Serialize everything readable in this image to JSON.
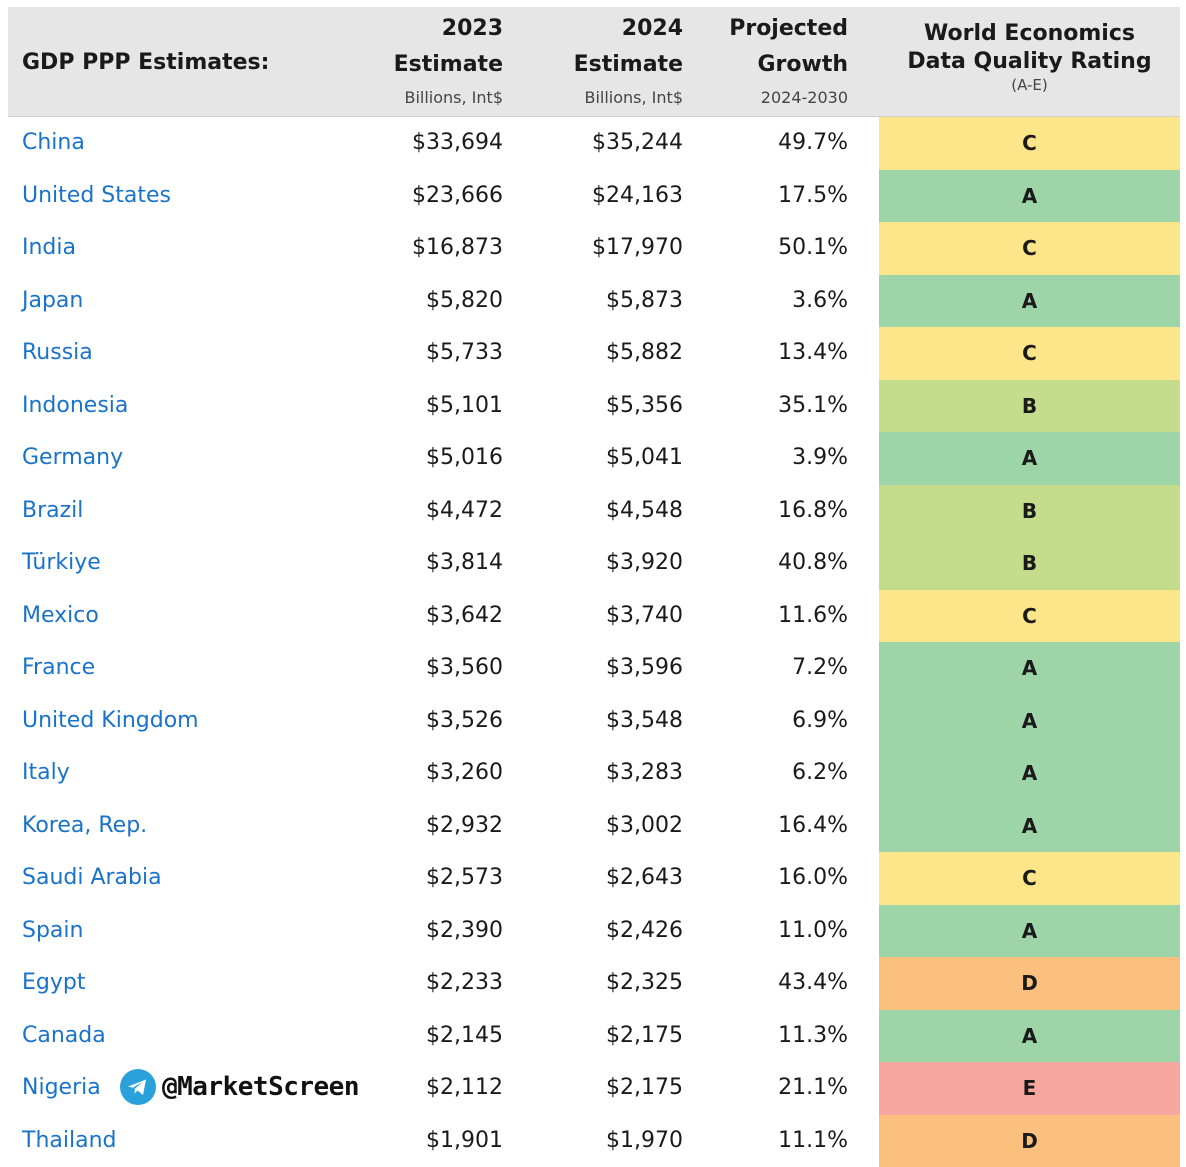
{
  "header": {
    "title": "GDP PPP Estimates:",
    "col_2023": [
      "2023",
      "Estimate",
      "Billions, Int$"
    ],
    "col_2024": [
      "2024",
      "Estimate",
      "Billions, Int$"
    ],
    "col_growth": [
      "Projected",
      "Growth",
      "2024-2030"
    ],
    "col_rating": [
      "World Economics",
      "Data Quality Rating",
      "(A-E)"
    ]
  },
  "rating_colors": {
    "A": "#9dd5a9",
    "B": "#c4dc8c",
    "C": "#fde58a",
    "D": "#fcc07e",
    "E": "#f8a7a0"
  },
  "rows": [
    {
      "country": "China",
      "v2023": "$33,694",
      "v2024": "$35,244",
      "growth": "49.7%",
      "rating": "C"
    },
    {
      "country": "United States",
      "v2023": "$23,666",
      "v2024": "$24,163",
      "growth": "17.5%",
      "rating": "A"
    },
    {
      "country": "India",
      "v2023": "$16,873",
      "v2024": "$17,970",
      "growth": "50.1%",
      "rating": "C"
    },
    {
      "country": "Japan",
      "v2023": "$5,820",
      "v2024": "$5,873",
      "growth": "3.6%",
      "rating": "A"
    },
    {
      "country": "Russia",
      "v2023": "$5,733",
      "v2024": "$5,882",
      "growth": "13.4%",
      "rating": "C"
    },
    {
      "country": "Indonesia",
      "v2023": "$5,101",
      "v2024": "$5,356",
      "growth": "35.1%",
      "rating": "B"
    },
    {
      "country": "Germany",
      "v2023": "$5,016",
      "v2024": "$5,041",
      "growth": "3.9%",
      "rating": "A"
    },
    {
      "country": "Brazil",
      "v2023": "$4,472",
      "v2024": "$4,548",
      "growth": "16.8%",
      "rating": "B"
    },
    {
      "country": "Türkiye",
      "v2023": "$3,814",
      "v2024": "$3,920",
      "growth": "40.8%",
      "rating": "B"
    },
    {
      "country": "Mexico",
      "v2023": "$3,642",
      "v2024": "$3,740",
      "growth": "11.6%",
      "rating": "C"
    },
    {
      "country": "France",
      "v2023": "$3,560",
      "v2024": "$3,596",
      "growth": "7.2%",
      "rating": "A"
    },
    {
      "country": "United Kingdom",
      "v2023": "$3,526",
      "v2024": "$3,548",
      "growth": "6.9%",
      "rating": "A"
    },
    {
      "country": "Italy",
      "v2023": "$3,260",
      "v2024": "$3,283",
      "growth": "6.2%",
      "rating": "A"
    },
    {
      "country": "Korea, Rep.",
      "v2023": "$2,932",
      "v2024": "$3,002",
      "growth": "16.4%",
      "rating": "A"
    },
    {
      "country": "Saudi Arabia",
      "v2023": "$2,573",
      "v2024": "$2,643",
      "growth": "16.0%",
      "rating": "C"
    },
    {
      "country": "Spain",
      "v2023": "$2,390",
      "v2024": "$2,426",
      "growth": "11.0%",
      "rating": "A"
    },
    {
      "country": "Egypt",
      "v2023": "$2,233",
      "v2024": "$2,325",
      "growth": "43.4%",
      "rating": "D"
    },
    {
      "country": "Canada",
      "v2023": "$2,145",
      "v2024": "$2,175",
      "growth": "11.3%",
      "rating": "A"
    },
    {
      "country": "Nigeria",
      "v2023": "$2,112",
      "v2024": "$2,175",
      "growth": "21.1%",
      "rating": "E"
    },
    {
      "country": "Thailand",
      "v2023": "$1,901",
      "v2024": "$1,970",
      "growth": "11.1%",
      "rating": "D"
    }
  ],
  "watermark": {
    "text": "@MarketScreen",
    "icon": "telegram-icon"
  }
}
